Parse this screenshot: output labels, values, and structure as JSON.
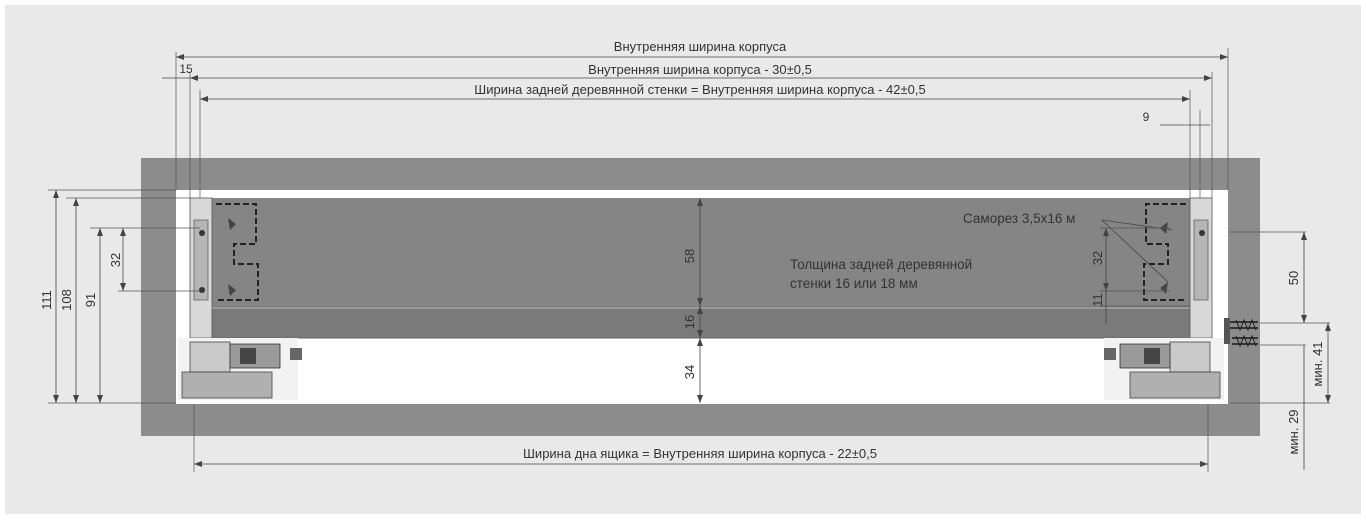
{
  "dimensions": {
    "inner_width": "Внутренняя ширина корпуса",
    "inner_width_minus_30": "Внутренняя ширина корпуса - 30±0,5",
    "back_panel_width": "Ширина задней деревянной стенки = Внутренняя ширина корпуса  - 42±0,5",
    "bottom_width": "Ширина дна ящика = Внутренняя ширина корпуса - 22±0,5",
    "left_offset": "15",
    "right_offset": "9",
    "height_111": "111",
    "height_108": "108",
    "height_91": "91",
    "left_32": "32",
    "center_58": "58",
    "center_16": "16",
    "center_34": "34",
    "right_32": "32",
    "right_11": "11",
    "right_50": "50",
    "min_41": "мин. 41",
    "min_29": "мин. 29"
  },
  "labels": {
    "screw": "Саморез 3,5x16 м",
    "back_thickness_line1": "Толщина задней деревянной",
    "back_thickness_line2": "стенки 16 или 18 мм"
  },
  "colors": {
    "background_panel": "#e9e9e9",
    "cabinet": "#8c8c8c",
    "drawer_back": "#7f7f7f",
    "interior": "#ffffff"
  }
}
